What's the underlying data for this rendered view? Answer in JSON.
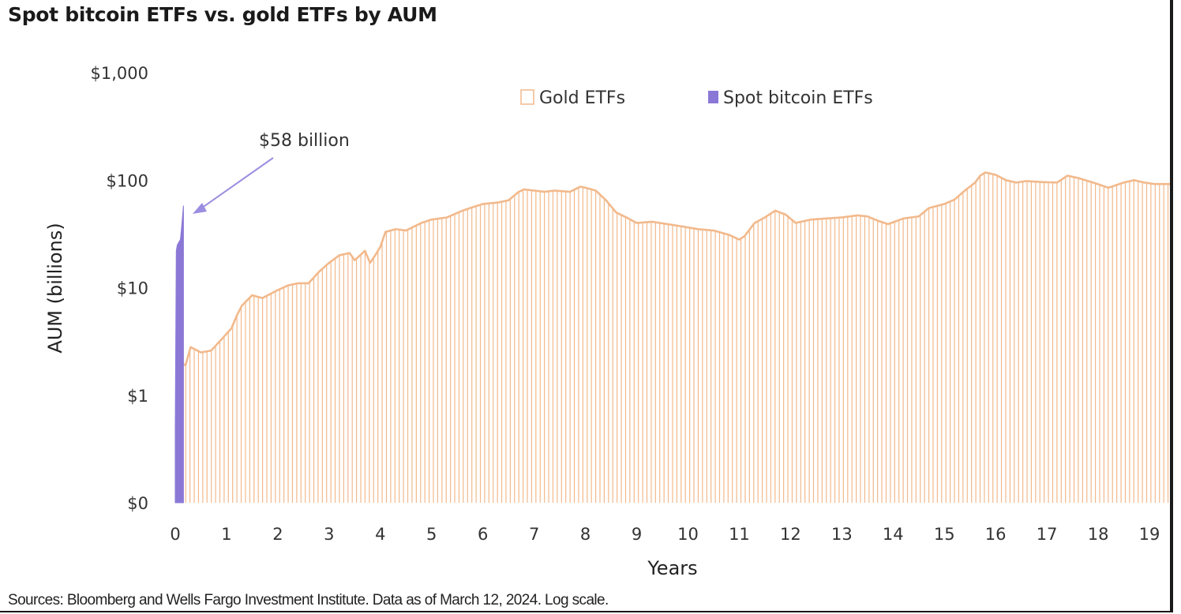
{
  "chart_data": {
    "type": "bar",
    "title": "Spot bitcoin ETFs vs. gold ETFs by AUM",
    "xlabel": "Years",
    "ylabel": "AUM (billions)",
    "yscale": "log",
    "ylim": [
      0.1,
      1000
    ],
    "xlim": [
      0,
      19.4
    ],
    "x_ticks": [
      "0",
      "1",
      "2",
      "3",
      "4",
      "5",
      "6",
      "7",
      "8",
      "9",
      "10",
      "11",
      "12",
      "13",
      "14",
      "15",
      "16",
      "17",
      "18",
      "19"
    ],
    "y_ticks": [
      {
        "value": 0.1,
        "label": "$0"
      },
      {
        "value": 1,
        "label": "$1"
      },
      {
        "value": 10,
        "label": "$10"
      },
      {
        "value": 100,
        "label": "$100"
      },
      {
        "value": 1000,
        "label": "$1,000"
      }
    ],
    "legend": {
      "position": "top-right",
      "entries": [
        "Gold ETFs",
        "Spot bitcoin ETFs"
      ]
    },
    "annotation": {
      "text": "$58 billion",
      "points_to_series": "Spot bitcoin ETFs"
    },
    "source": "Sources: Bloomberg and Wells Fargo Investment Institute. Data as of March 12, 2024. Log scale.",
    "colors": {
      "gold": "#f2b98c",
      "bitcoin": "#8b78d6",
      "arrow": "#9a8ee0"
    },
    "series": [
      {
        "name": "Gold ETFs",
        "x": [
          0,
          0.1,
          0.2,
          0.3,
          0.5,
          0.7,
          0.9,
          1.1,
          1.2,
          1.3,
          1.5,
          1.7,
          2.0,
          2.2,
          2.4,
          2.6,
          2.8,
          3.0,
          3.2,
          3.4,
          3.5,
          3.7,
          3.8,
          3.9,
          4.0,
          4.1,
          4.3,
          4.5,
          4.8,
          5.0,
          5.3,
          5.6,
          5.8,
          6.0,
          6.3,
          6.5,
          6.7,
          6.8,
          7.0,
          7.2,
          7.4,
          7.7,
          7.9,
          8.0,
          8.2,
          8.4,
          8.6,
          8.8,
          9.0,
          9.3,
          9.6,
          9.9,
          10.2,
          10.5,
          10.8,
          11.0,
          11.1,
          11.3,
          11.5,
          11.7,
          11.9,
          12.1,
          12.4,
          12.7,
          13.0,
          13.3,
          13.5,
          13.7,
          13.9,
          14.2,
          14.5,
          14.7,
          15.0,
          15.2,
          15.4,
          15.6,
          15.7,
          15.8,
          16.0,
          16.2,
          16.4,
          16.6,
          16.9,
          17.2,
          17.4,
          17.6,
          17.9,
          18.2,
          18.5,
          18.7,
          18.9,
          19.1,
          19.3
        ],
        "values": [
          1.5,
          2,
          1.9,
          2.8,
          2.5,
          2.6,
          3.3,
          4.2,
          5.5,
          6.8,
          8.5,
          8.0,
          9.5,
          10.5,
          11.0,
          11.0,
          14.0,
          17.0,
          20.0,
          21.0,
          18.0,
          22.0,
          17.0,
          20.0,
          24.0,
          33.0,
          35.0,
          34.0,
          40.0,
          43.0,
          45.0,
          52.0,
          56.0,
          60.0,
          62.0,
          65.0,
          78.0,
          82.0,
          80.0,
          78.0,
          80.0,
          78.0,
          87.0,
          85.0,
          80.0,
          65.0,
          50.0,
          45.0,
          40.0,
          41.0,
          39.0,
          37.0,
          35.0,
          34.0,
          31.0,
          28.0,
          30.0,
          40.0,
          45.0,
          52.0,
          48.0,
          40.0,
          43.0,
          44.0,
          45.0,
          47.0,
          46.0,
          42.0,
          39.0,
          44.0,
          46.0,
          55.0,
          60.0,
          66.0,
          80.0,
          95.0,
          110.0,
          118.0,
          112.0,
          100.0,
          95.0,
          98.0,
          96.0,
          95.0,
          110.0,
          105.0,
          95.0,
          85.0,
          95.0,
          100.0,
          95.0,
          92.0,
          92.0
        ]
      },
      {
        "name": "Spot bitcoin ETFs",
        "x": [
          0,
          0.02,
          0.04,
          0.06,
          0.08,
          0.1,
          0.12,
          0.14,
          0.16
        ],
        "values": [
          0.5,
          22,
          25,
          26,
          27,
          28,
          35,
          45,
          58
        ]
      }
    ]
  }
}
